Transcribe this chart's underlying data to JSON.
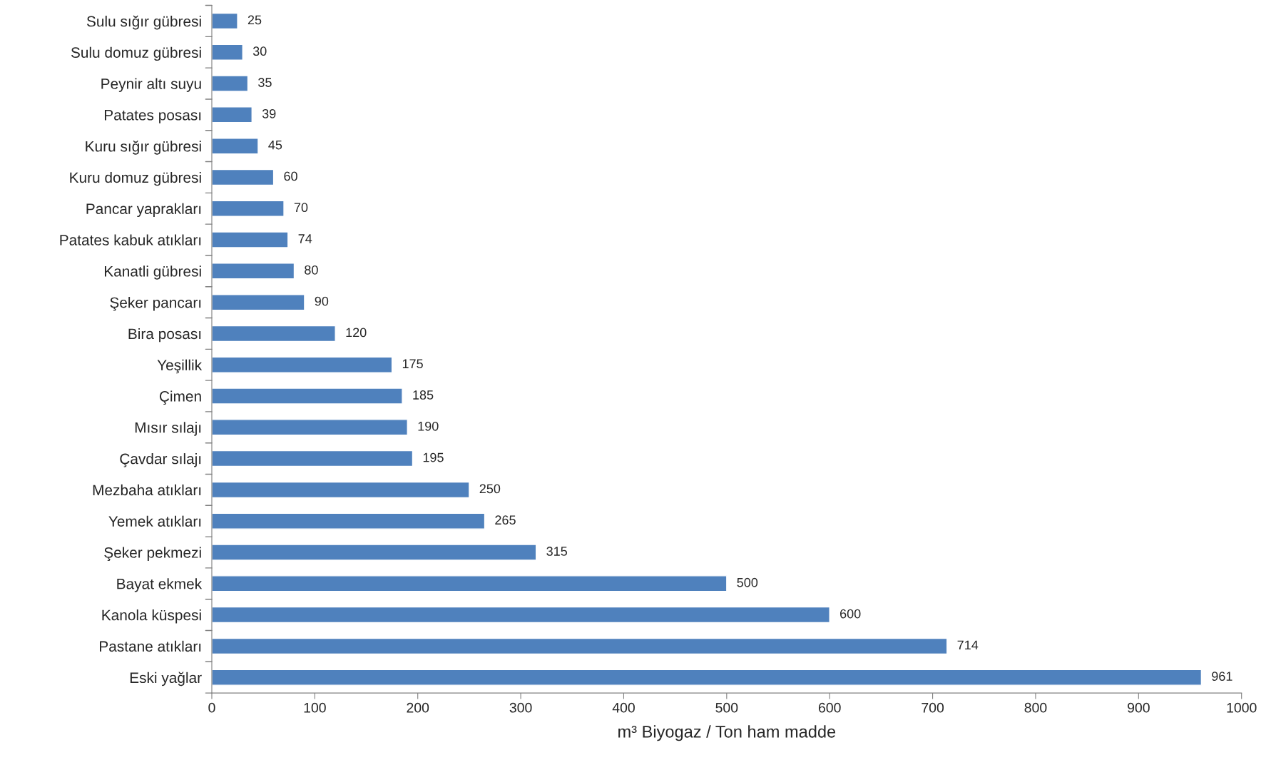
{
  "chart_data": {
    "type": "bar",
    "orientation": "horizontal",
    "xlabel": "m³ Biyogaz / Ton ham madde",
    "categories": [
      "Sulu sığır gübresi",
      "Sulu domuz gübresi",
      "Peynir altı suyu",
      "Patates posası",
      "Kuru sığır gübresi",
      "Kuru domuz gübresi",
      "Pancar yaprakları",
      "Patates kabuk atıkları",
      "Kanatli gübresi",
      "Şeker pancarı",
      "Bira posası",
      "Yeşillik",
      "Çimen",
      "Mısır sılajı",
      "Çavdar sılajı",
      "Mezbaha atıkları",
      "Yemek atıkları",
      "Şeker pekmezi",
      "Bayat ekmek",
      "Kanola küspesi",
      "Pastane atıkları",
      "Eski yağlar"
    ],
    "values": [
      25,
      30,
      35,
      39,
      45,
      60,
      70,
      74,
      80,
      90,
      120,
      175,
      185,
      190,
      195,
      250,
      265,
      315,
      500,
      600,
      714,
      961
    ],
    "color": "#4f81bd",
    "data_labels": true,
    "grid": false,
    "legend": false,
    "xlim": [
      0,
      1000
    ],
    "xticks": [
      0,
      100,
      200,
      300,
      400,
      500,
      600,
      700,
      800,
      900,
      1000
    ]
  }
}
